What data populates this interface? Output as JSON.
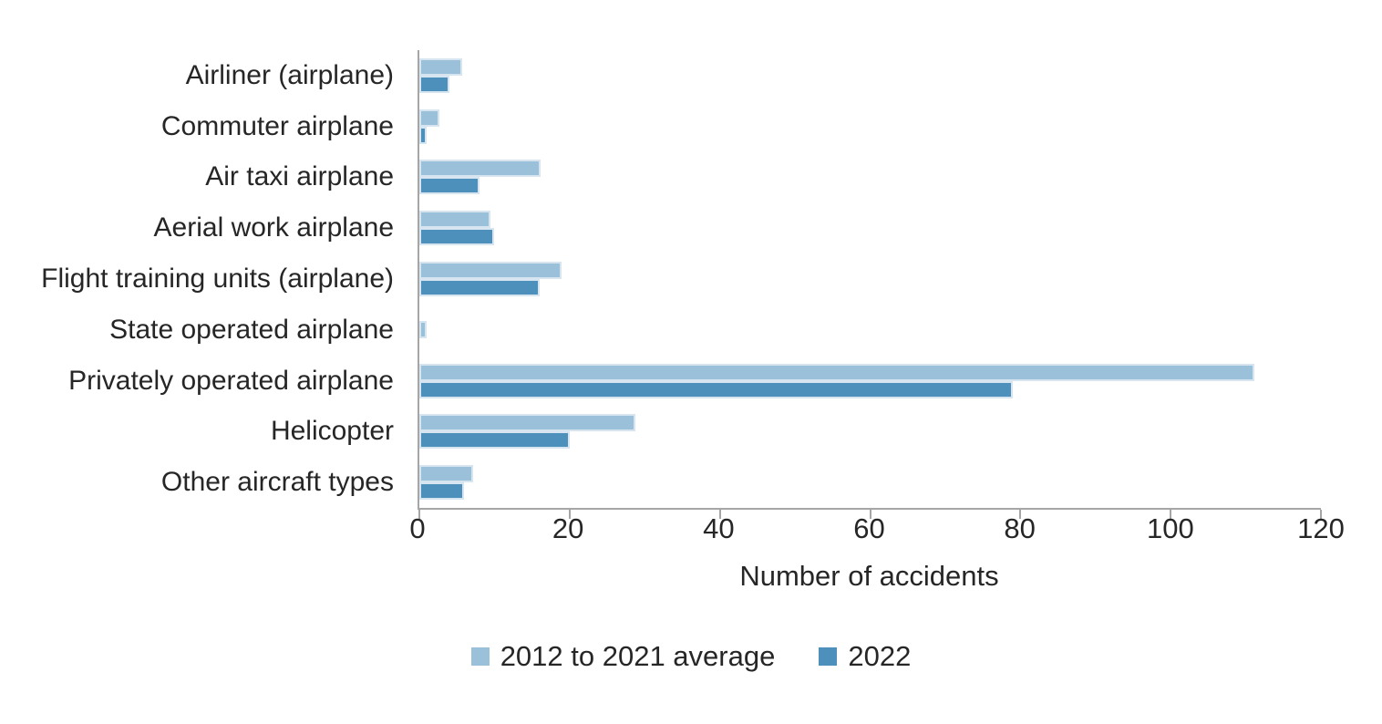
{
  "figure": {
    "background": "#ffffff",
    "axis_color": "#a6a6a6",
    "text_color": "#262626"
  },
  "chart_data": {
    "type": "bar",
    "orientation": "horizontal",
    "title": "",
    "xlabel": "Number of accidents",
    "ylabel": "",
    "xlim": [
      0,
      120
    ],
    "xticks": [
      0,
      20,
      40,
      60,
      80,
      100,
      120
    ],
    "grid": false,
    "legend_position": "bottom-center",
    "categories": [
      "Airliner (airplane)",
      "Commuter airplane",
      "Air taxi airplane",
      "Aerial work airplane",
      "Flight training units (airplane)",
      "State operated airplane",
      "Privately operated airplane",
      "Helicopter",
      "Other aircraft types"
    ],
    "series": [
      {
        "name": "2012 to 2021 average",
        "color": "#9bc0d9",
        "border_color": "#d6e5f0",
        "values": [
          5.7,
          2.7,
          16.1,
          9.5,
          18.9,
          1,
          111.1,
          28.7,
          7.1
        ]
      },
      {
        "name": "2022",
        "color": "#4d90bb",
        "border_color": "#d6e5f0",
        "values": [
          4,
          1,
          8,
          10,
          16,
          0,
          79,
          20,
          6
        ]
      }
    ]
  }
}
